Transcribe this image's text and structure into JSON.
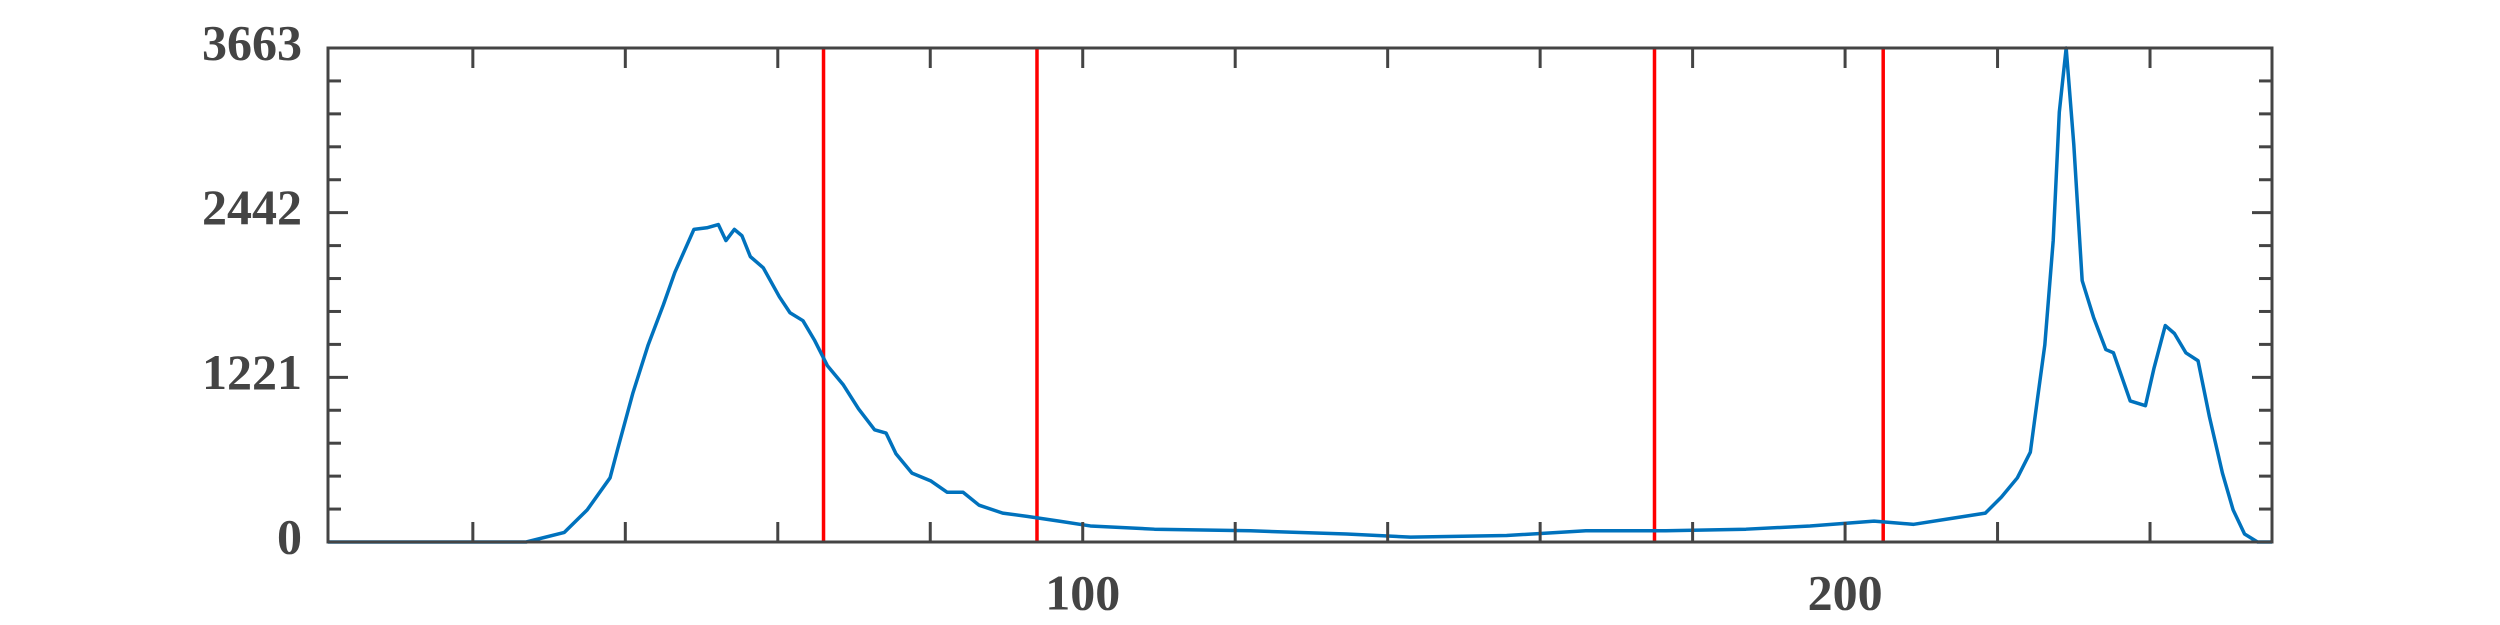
{
  "chart_data": {
    "type": "line",
    "x": [
      1,
      27,
      32,
      35,
      38,
      39,
      41,
      43,
      45,
      46.5,
      49,
      50.7,
      52.2,
      53.2,
      54.3,
      55.3,
      56.4,
      58.1,
      60.2,
      61.6,
      63.3,
      64.8,
      66.5,
      68.6,
      70.6,
      72.7,
      74.2,
      75.5,
      77.6,
      80.1,
      82.2,
      84.3,
      86.4,
      89.5,
      92.7,
      96.9,
      101,
      109.4,
      122,
      134.6,
      143,
      155.6,
      166,
      176.5,
      187,
      195.4,
      203.8,
      209,
      214.3,
      218.4,
      220.5,
      222.6,
      224.3,
      225.2,
      226.2,
      227.3,
      228.1,
      229,
      230,
      231.1,
      232.6,
      234.2,
      235.2,
      237.4,
      239.4,
      240.5,
      242,
      243.2,
      244.7,
      246.3,
      247.8,
      249.5,
      250.9,
      252.4,
      254.1,
      256
    ],
    "series": [
      {
        "color": "#0072bd",
        "values": [
          0,
          0,
          71,
          238,
          476,
          690,
          1106,
          1462,
          1760,
          2000,
          2318,
          2330,
          2354,
          2235,
          2318,
          2271,
          2116,
          2033,
          1819,
          1700,
          1641,
          1498,
          1308,
          1165,
          987,
          832,
          808,
          654,
          511,
          452,
          369,
          369,
          273,
          214,
          190,
          155,
          119,
          95,
          83,
          59,
          36,
          48,
          83,
          83,
          95,
          119,
          155,
          131,
          178,
          214,
          333,
          476,
          666,
          1046,
          1462,
          2235,
          3187,
          3663,
          2948,
          1938,
          1665,
          1427,
          1403,
          1046,
          1011,
          1284,
          1605,
          1546,
          1403,
          1344,
          927,
          511,
          238,
          59,
          0,
          0
        ]
      }
    ],
    "xlim": [
      1,
      256
    ],
    "xticks": [
      100,
      200
    ],
    "xminor": [
      20,
      40,
      60,
      80,
      120,
      140,
      160,
      180,
      220,
      240
    ],
    "ylim": [
      0,
      3663
    ],
    "yticks": [
      0,
      1221,
      2442,
      3663
    ],
    "yminor": [
      244.2,
      488.4,
      732.6,
      976.8,
      1465.2,
      1709.4,
      1953.6,
      2197.8,
      2686.2,
      2930.4,
      3174.6,
      3418.8
    ],
    "vlines": [
      66,
      94,
      175,
      205
    ],
    "vline_color": "#ff0000"
  }
}
